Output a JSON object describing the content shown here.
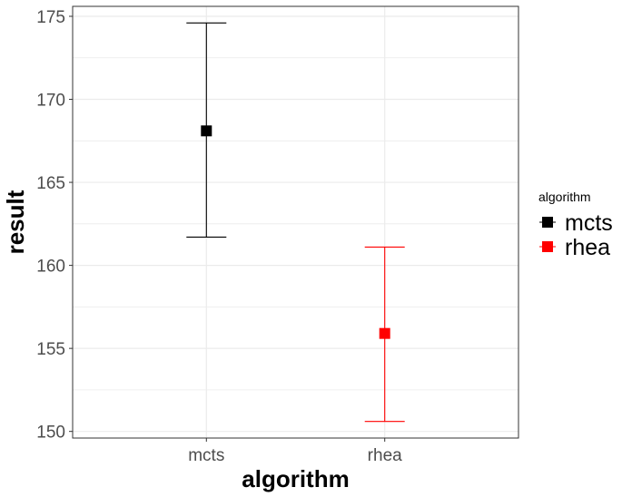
{
  "chart_data": {
    "type": "scatter",
    "title": "",
    "xlabel": "algorithm",
    "ylabel": "result",
    "categories": [
      "mcts",
      "rhea"
    ],
    "ylim": [
      149.6,
      175.6
    ],
    "yticks": [
      150,
      155,
      160,
      165,
      170,
      175
    ],
    "ytick_labels": [
      "150",
      "155",
      "160",
      "165",
      "170",
      "175"
    ],
    "grid": true,
    "legend": {
      "title": "algorithm",
      "position": "right",
      "entries": [
        "mcts",
        "rhea"
      ]
    },
    "series": [
      {
        "name": "mcts",
        "color": "#000000",
        "marker": "square",
        "x": "mcts",
        "y": 168.1,
        "ymin": 161.7,
        "ymax": 174.6
      },
      {
        "name": "rhea",
        "color": "#ff0000",
        "marker": "square",
        "x": "rhea",
        "y": 155.9,
        "ymin": 150.6,
        "ymax": 161.1
      }
    ]
  }
}
